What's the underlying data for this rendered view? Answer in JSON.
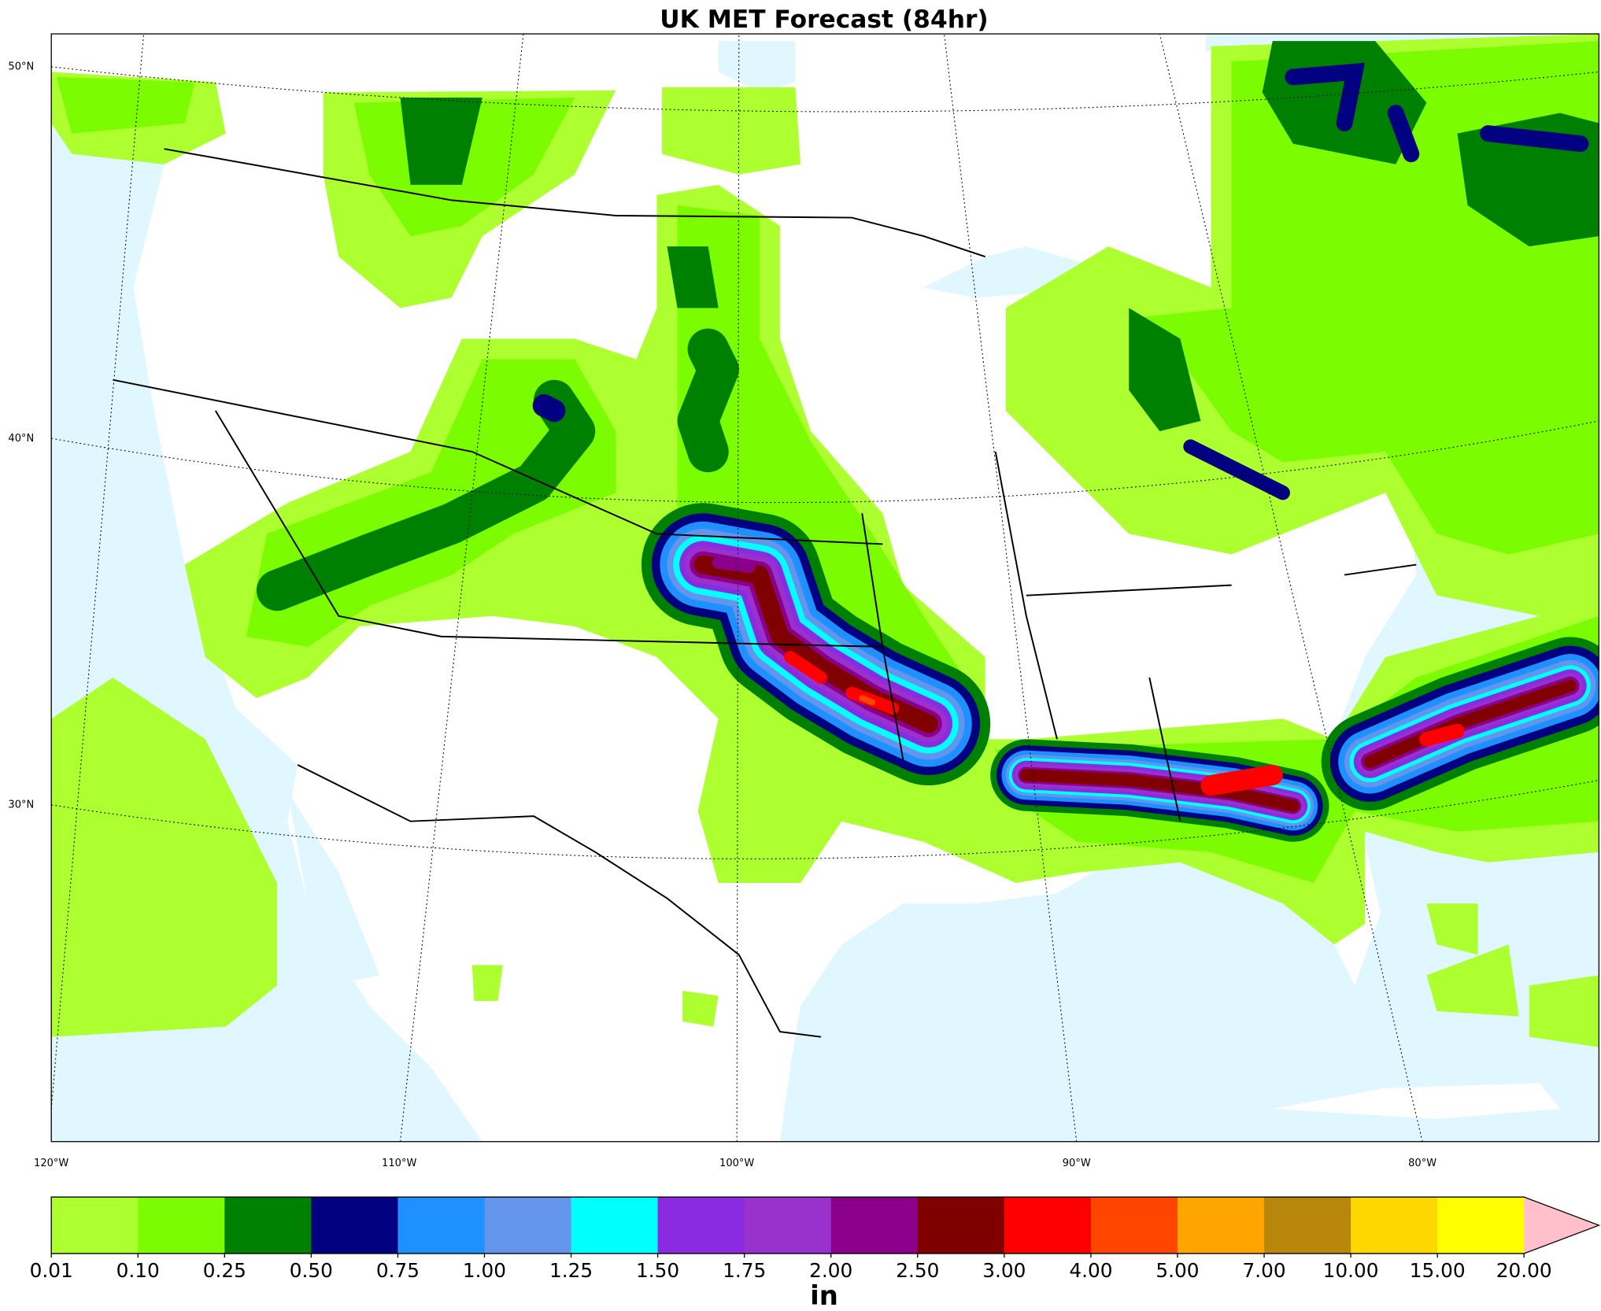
{
  "title": "UK MET Forecast (84hr)",
  "lat_labels": [
    "50°N",
    "40°N",
    "30°N"
  ],
  "lon_labels": [
    "120°W",
    "110°W",
    "100°W",
    "90°W",
    "80°W"
  ],
  "colorbar": {
    "labels": [
      "0.01",
      "0.10",
      "0.25",
      "0.50",
      "0.75",
      "1.00",
      "1.25",
      "1.50",
      "1.75",
      "2.00",
      "2.50",
      "3.00",
      "4.00",
      "5.00",
      "7.00",
      "10.00",
      "15.00",
      "20.00"
    ],
    "colors": [
      "#adff2f",
      "#7cfc00",
      "#008000",
      "#000080",
      "#1e90ff",
      "#6495ed",
      "#00ffff",
      "#8a2be2",
      "#9932cc",
      "#8b008b",
      "#800000",
      "#ff0000",
      "#ff4500",
      "#ffa500",
      "#b8860b",
      "#ffd700",
      "#ffff00"
    ],
    "extend_color": "#ffc0cb",
    "unit": "in"
  }
}
